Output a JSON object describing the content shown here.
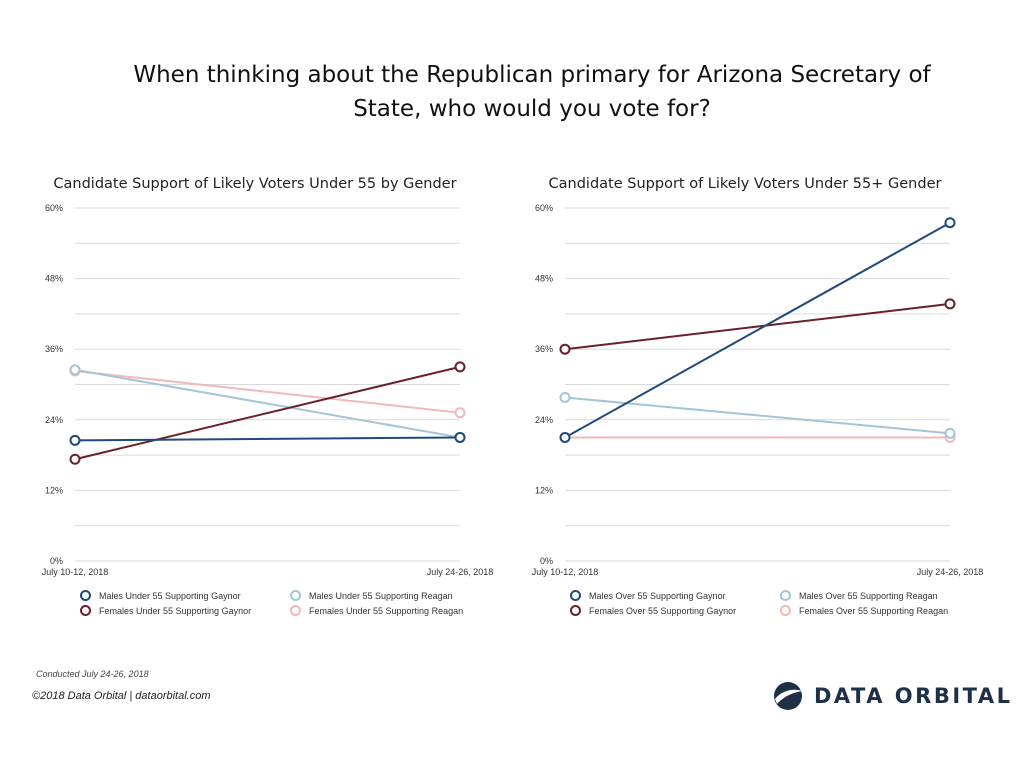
{
  "page": {
    "title": "When thinking about the Republican primary for Arizona Secretary of State, who would you vote for?",
    "footer_note": "Conducted July  24-26, 2018",
    "copyright": "©2018 Data Orbital | dataorbital.com",
    "logo_text": "DATA ORBITAL"
  },
  "colors": {
    "dark_blue": "#1f4a7c",
    "light_blue": "#a4c4d8",
    "dark_red": "#6b1f2a",
    "light_pink": "#f2b8b8"
  },
  "chart_data": [
    {
      "type": "line",
      "title": "Candidate Support of Likely Voters Under 55 by Gender",
      "x": [
        "July 10-12, 2018",
        "July 24-26, 2018"
      ],
      "ylim": [
        0,
        60
      ],
      "yticks": [
        0,
        12,
        24,
        36,
        48,
        60
      ],
      "ytick_labels": [
        "0%",
        "12%",
        "24%",
        "36%",
        "48%",
        "60%"
      ],
      "grid": true,
      "legend_position": "bottom",
      "series": [
        {
          "name": "Males Under 55 Supporting Gaynor",
          "values": [
            20.5,
            21
          ],
          "color": "#1f4a7c"
        },
        {
          "name": "Females Under 55 Supporting Gaynor",
          "values": [
            17.3,
            33
          ],
          "color": "#6b1f2a"
        },
        {
          "name": "Males Under 55 Supporting Reagan",
          "values": [
            32.5,
            21
          ],
          "color": "#a4c4d8"
        },
        {
          "name": "Females Under 55 Supporting Reagan",
          "values": [
            32.3,
            25.2
          ],
          "color": "#f2b8b8"
        }
      ]
    },
    {
      "type": "line",
      "title": "Candidate Support of Likely Voters Under 55+ Gender",
      "x": [
        "July 10-12, 2018",
        "July 24-26, 2018"
      ],
      "ylim": [
        0,
        60
      ],
      "yticks": [
        0,
        12,
        24,
        36,
        48,
        60
      ],
      "ytick_labels": [
        "0%",
        "12%",
        "24%",
        "36%",
        "48%",
        "60%"
      ],
      "grid": true,
      "legend_position": "bottom",
      "series": [
        {
          "name": "Males Over 55 Supporting Gaynor",
          "values": [
            21,
            57.5
          ],
          "color": "#1f4a7c"
        },
        {
          "name": "Females Over 55 Supporting Gaynor",
          "values": [
            36,
            43.7
          ],
          "color": "#6b1f2a"
        },
        {
          "name": "Males Over 55 Supporting Reagan",
          "values": [
            27.8,
            21.7
          ],
          "color": "#a4c4d8"
        },
        {
          "name": "Females Over 55 Supporting Reagan",
          "values": [
            21,
            21
          ],
          "color": "#f2b8b8"
        }
      ]
    }
  ]
}
